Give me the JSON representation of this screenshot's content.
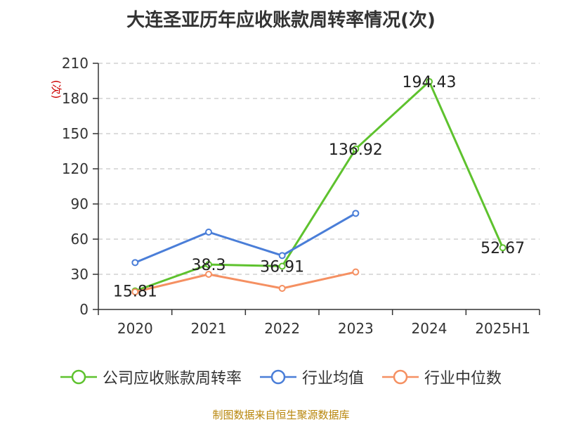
{
  "title": "大连圣亚历年应收账款周转率情况(次)",
  "source": "制图数据来自恒生聚源数据库",
  "colors": {
    "company": "#5ec22e",
    "industry_avg": "#4a7ed8",
    "industry_median": "#f59062",
    "grid": "#c8c8c8",
    "axis": "#333333",
    "ylabel": "#cc0000"
  },
  "chart_data": {
    "type": "line",
    "title": "大连圣亚历年应收账款周转率情况(次)",
    "xlabel": "",
    "ylabel": "(次)",
    "categories": [
      "2020",
      "2021",
      "2022",
      "2023",
      "2024",
      "2025H1"
    ],
    "ylim": [
      0,
      210
    ],
    "yticks": [
      0,
      30,
      60,
      90,
      120,
      150,
      180,
      210
    ],
    "grid": true,
    "legend_position": "bottom",
    "series": [
      {
        "name": "公司应收账款周转率",
        "values": [
          15.81,
          38.3,
          36.91,
          136.92,
          194.43,
          52.67
        ],
        "color": "#5ec22e",
        "labels": [
          "15.81",
          "38.3",
          "36.91",
          "136.92",
          "194.43",
          "52.67"
        ]
      },
      {
        "name": "行业均值",
        "values": [
          40,
          66,
          46,
          82,
          null,
          null
        ],
        "color": "#4a7ed8"
      },
      {
        "name": "行业中位数",
        "values": [
          15,
          30,
          18,
          32,
          null,
          null
        ],
        "color": "#f59062"
      }
    ]
  }
}
